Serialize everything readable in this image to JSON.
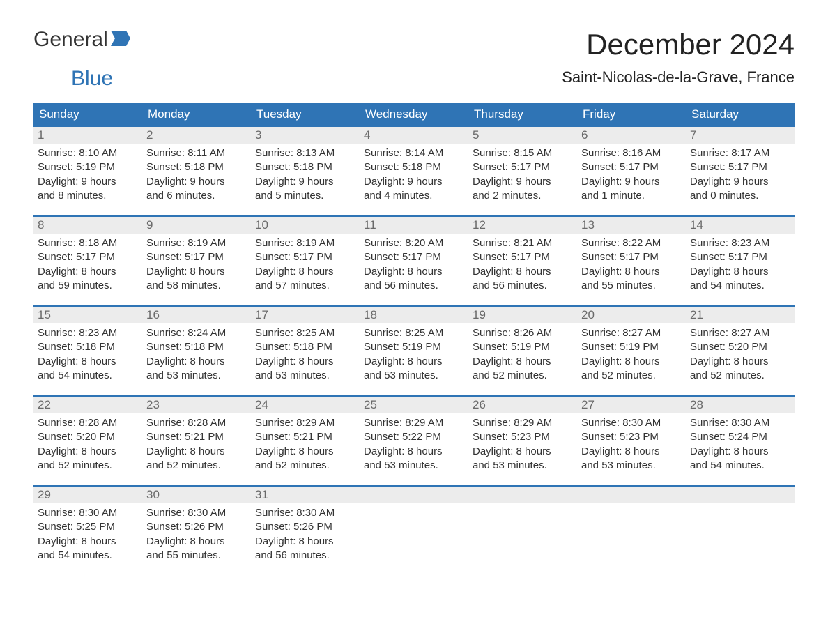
{
  "brand": {
    "word1": "General",
    "word2": "Blue"
  },
  "header": {
    "month_title": "December 2024",
    "location": "Saint-Nicolas-de-la-Grave, France"
  },
  "colors": {
    "header_bg": "#2f74b5",
    "header_text": "#ffffff",
    "daynum_bg": "#ececec",
    "daynum_text": "#6a6a6a",
    "body_text": "#333333",
    "week_divider": "#2f74b5",
    "page_bg": "#ffffff"
  },
  "calendar": {
    "day_names": [
      "Sunday",
      "Monday",
      "Tuesday",
      "Wednesday",
      "Thursday",
      "Friday",
      "Saturday"
    ],
    "weeks": [
      [
        {
          "num": "1",
          "sunrise": "8:10 AM",
          "sunset": "5:19 PM",
          "daylight_l1": "Daylight: 9 hours",
          "daylight_l2": "and 8 minutes."
        },
        {
          "num": "2",
          "sunrise": "8:11 AM",
          "sunset": "5:18 PM",
          "daylight_l1": "Daylight: 9 hours",
          "daylight_l2": "and 6 minutes."
        },
        {
          "num": "3",
          "sunrise": "8:13 AM",
          "sunset": "5:18 PM",
          "daylight_l1": "Daylight: 9 hours",
          "daylight_l2": "and 5 minutes."
        },
        {
          "num": "4",
          "sunrise": "8:14 AM",
          "sunset": "5:18 PM",
          "daylight_l1": "Daylight: 9 hours",
          "daylight_l2": "and 4 minutes."
        },
        {
          "num": "5",
          "sunrise": "8:15 AM",
          "sunset": "5:17 PM",
          "daylight_l1": "Daylight: 9 hours",
          "daylight_l2": "and 2 minutes."
        },
        {
          "num": "6",
          "sunrise": "8:16 AM",
          "sunset": "5:17 PM",
          "daylight_l1": "Daylight: 9 hours",
          "daylight_l2": "and 1 minute."
        },
        {
          "num": "7",
          "sunrise": "8:17 AM",
          "sunset": "5:17 PM",
          "daylight_l1": "Daylight: 9 hours",
          "daylight_l2": "and 0 minutes."
        }
      ],
      [
        {
          "num": "8",
          "sunrise": "8:18 AM",
          "sunset": "5:17 PM",
          "daylight_l1": "Daylight: 8 hours",
          "daylight_l2": "and 59 minutes."
        },
        {
          "num": "9",
          "sunrise": "8:19 AM",
          "sunset": "5:17 PM",
          "daylight_l1": "Daylight: 8 hours",
          "daylight_l2": "and 58 minutes."
        },
        {
          "num": "10",
          "sunrise": "8:19 AM",
          "sunset": "5:17 PM",
          "daylight_l1": "Daylight: 8 hours",
          "daylight_l2": "and 57 minutes."
        },
        {
          "num": "11",
          "sunrise": "8:20 AM",
          "sunset": "5:17 PM",
          "daylight_l1": "Daylight: 8 hours",
          "daylight_l2": "and 56 minutes."
        },
        {
          "num": "12",
          "sunrise": "8:21 AM",
          "sunset": "5:17 PM",
          "daylight_l1": "Daylight: 8 hours",
          "daylight_l2": "and 56 minutes."
        },
        {
          "num": "13",
          "sunrise": "8:22 AM",
          "sunset": "5:17 PM",
          "daylight_l1": "Daylight: 8 hours",
          "daylight_l2": "and 55 minutes."
        },
        {
          "num": "14",
          "sunrise": "8:23 AM",
          "sunset": "5:17 PM",
          "daylight_l1": "Daylight: 8 hours",
          "daylight_l2": "and 54 minutes."
        }
      ],
      [
        {
          "num": "15",
          "sunrise": "8:23 AM",
          "sunset": "5:18 PM",
          "daylight_l1": "Daylight: 8 hours",
          "daylight_l2": "and 54 minutes."
        },
        {
          "num": "16",
          "sunrise": "8:24 AM",
          "sunset": "5:18 PM",
          "daylight_l1": "Daylight: 8 hours",
          "daylight_l2": "and 53 minutes."
        },
        {
          "num": "17",
          "sunrise": "8:25 AM",
          "sunset": "5:18 PM",
          "daylight_l1": "Daylight: 8 hours",
          "daylight_l2": "and 53 minutes."
        },
        {
          "num": "18",
          "sunrise": "8:25 AM",
          "sunset": "5:19 PM",
          "daylight_l1": "Daylight: 8 hours",
          "daylight_l2": "and 53 minutes."
        },
        {
          "num": "19",
          "sunrise": "8:26 AM",
          "sunset": "5:19 PM",
          "daylight_l1": "Daylight: 8 hours",
          "daylight_l2": "and 52 minutes."
        },
        {
          "num": "20",
          "sunrise": "8:27 AM",
          "sunset": "5:19 PM",
          "daylight_l1": "Daylight: 8 hours",
          "daylight_l2": "and 52 minutes."
        },
        {
          "num": "21",
          "sunrise": "8:27 AM",
          "sunset": "5:20 PM",
          "daylight_l1": "Daylight: 8 hours",
          "daylight_l2": "and 52 minutes."
        }
      ],
      [
        {
          "num": "22",
          "sunrise": "8:28 AM",
          "sunset": "5:20 PM",
          "daylight_l1": "Daylight: 8 hours",
          "daylight_l2": "and 52 minutes."
        },
        {
          "num": "23",
          "sunrise": "8:28 AM",
          "sunset": "5:21 PM",
          "daylight_l1": "Daylight: 8 hours",
          "daylight_l2": "and 52 minutes."
        },
        {
          "num": "24",
          "sunrise": "8:29 AM",
          "sunset": "5:21 PM",
          "daylight_l1": "Daylight: 8 hours",
          "daylight_l2": "and 52 minutes."
        },
        {
          "num": "25",
          "sunrise": "8:29 AM",
          "sunset": "5:22 PM",
          "daylight_l1": "Daylight: 8 hours",
          "daylight_l2": "and 53 minutes."
        },
        {
          "num": "26",
          "sunrise": "8:29 AM",
          "sunset": "5:23 PM",
          "daylight_l1": "Daylight: 8 hours",
          "daylight_l2": "and 53 minutes."
        },
        {
          "num": "27",
          "sunrise": "8:30 AM",
          "sunset": "5:23 PM",
          "daylight_l1": "Daylight: 8 hours",
          "daylight_l2": "and 53 minutes."
        },
        {
          "num": "28",
          "sunrise": "8:30 AM",
          "sunset": "5:24 PM",
          "daylight_l1": "Daylight: 8 hours",
          "daylight_l2": "and 54 minutes."
        }
      ],
      [
        {
          "num": "29",
          "sunrise": "8:30 AM",
          "sunset": "5:25 PM",
          "daylight_l1": "Daylight: 8 hours",
          "daylight_l2": "and 54 minutes."
        },
        {
          "num": "30",
          "sunrise": "8:30 AM",
          "sunset": "5:26 PM",
          "daylight_l1": "Daylight: 8 hours",
          "daylight_l2": "and 55 minutes."
        },
        {
          "num": "31",
          "sunrise": "8:30 AM",
          "sunset": "5:26 PM",
          "daylight_l1": "Daylight: 8 hours",
          "daylight_l2": "and 56 minutes."
        },
        {
          "empty": true
        },
        {
          "empty": true
        },
        {
          "empty": true
        },
        {
          "empty": true
        }
      ]
    ],
    "labels": {
      "sunrise_prefix": "Sunrise: ",
      "sunset_prefix": "Sunset: "
    }
  }
}
